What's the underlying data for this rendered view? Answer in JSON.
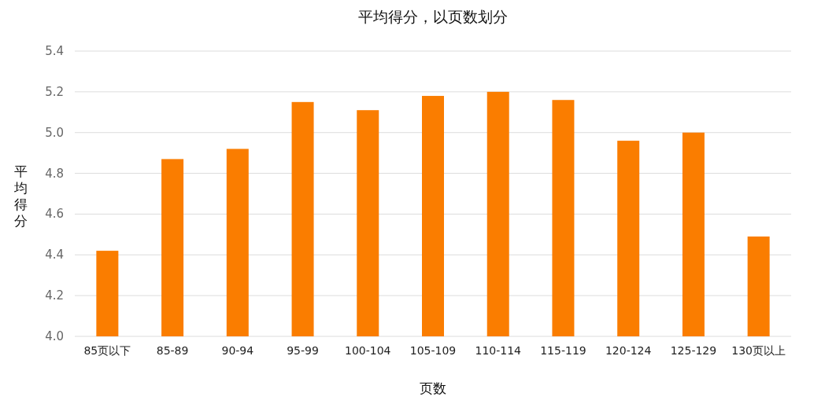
{
  "chart_data": {
    "type": "bar",
    "title": "平均得分，以页数划分",
    "xlabel": "页数",
    "ylabel": "平均得分",
    "categories": [
      "85页以下",
      "85-89",
      "90-94",
      "95-99",
      "100-104",
      "105-109",
      "110-114",
      "115-119",
      "120-124",
      "125-129",
      "130页以上"
    ],
    "values": [
      4.42,
      4.87,
      4.92,
      5.15,
      5.11,
      5.18,
      5.2,
      5.16,
      4.96,
      5.0,
      4.49
    ],
    "color": "#fa7d00",
    "ylim": [
      4.0,
      5.4
    ],
    "yticks": [
      {
        "value": 4.0,
        "label": "4.0"
      },
      {
        "value": 4.2,
        "label": "4.2"
      },
      {
        "value": 4.4,
        "label": "4.4"
      },
      {
        "value": 4.6,
        "label": "4.6"
      },
      {
        "value": 4.8,
        "label": "4.8"
      },
      {
        "value": 5.0,
        "label": "5.0"
      },
      {
        "value": 5.2,
        "label": "5.2"
      },
      {
        "value": 5.4,
        "label": "5.4"
      }
    ],
    "grid": "y"
  }
}
